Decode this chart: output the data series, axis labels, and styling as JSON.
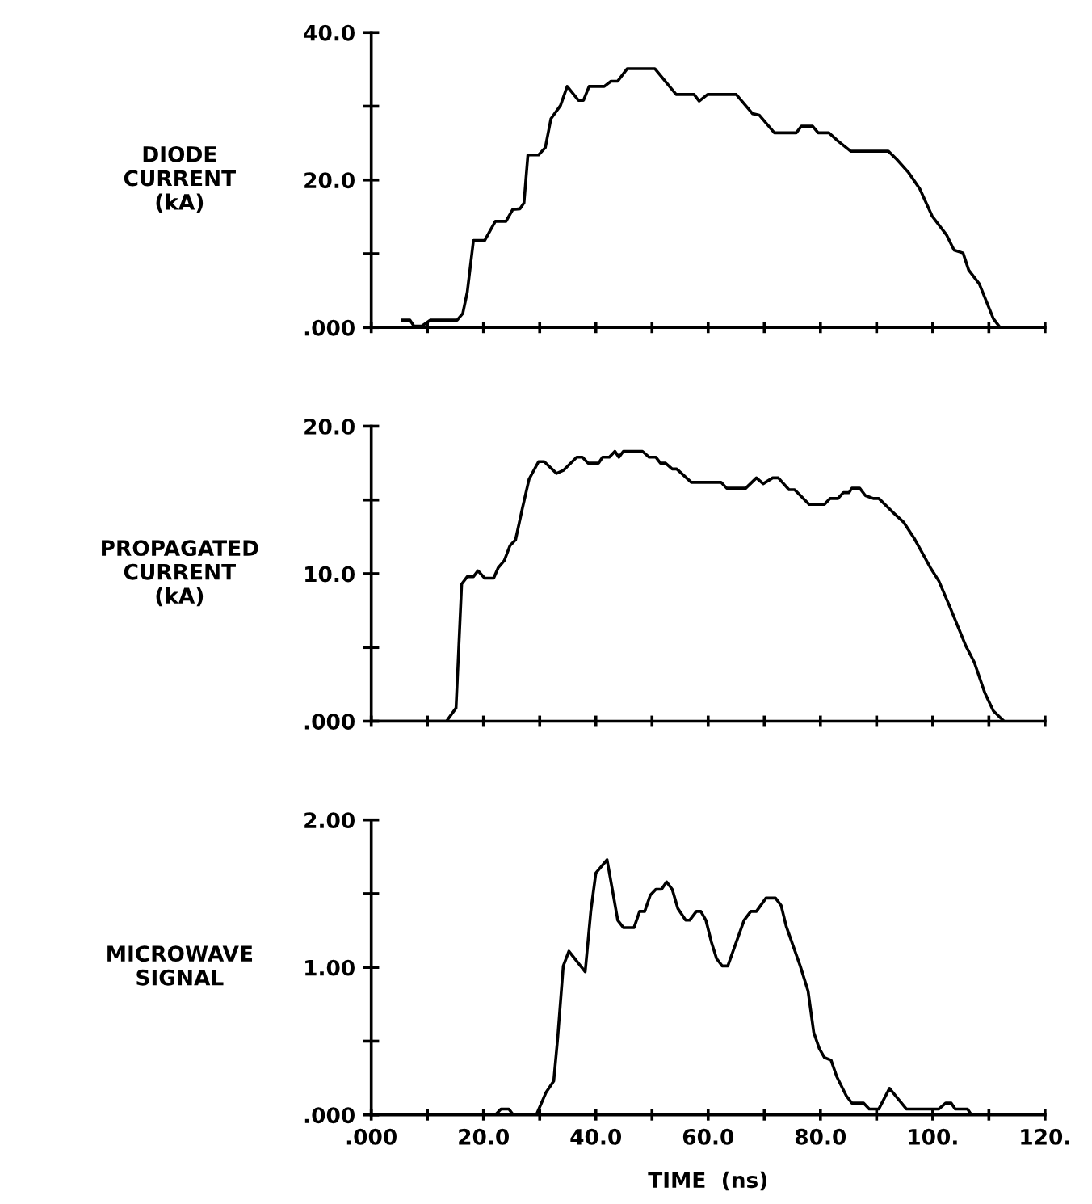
{
  "chart_data": [
    {
      "type": "line",
      "ylabel": "DIODE\nCURRENT\n(kA)",
      "xlim": [
        0,
        120
      ],
      "ylim": [
        0,
        40
      ],
      "tick_labels": "y",
      "grid": false,
      "xticks": [
        {
          "value": 0,
          "label": null
        },
        {
          "value": 10,
          "label": null
        },
        {
          "value": 20,
          "label": null
        },
        {
          "value": 30,
          "label": null
        },
        {
          "value": 40,
          "label": null
        },
        {
          "value": 50,
          "label": null
        },
        {
          "value": 60,
          "label": null
        },
        {
          "value": 70,
          "label": null
        },
        {
          "value": 80,
          "label": null
        },
        {
          "value": 90,
          "label": null
        },
        {
          "value": 100,
          "label": null
        },
        {
          "value": 110,
          "label": null
        },
        {
          "value": 120,
          "label": null
        }
      ],
      "yticks": [
        {
          "value": 0,
          "label": ".000"
        },
        {
          "value": 10,
          "label": null
        },
        {
          "value": 20,
          "label": "20.0"
        },
        {
          "value": 30,
          "label": null
        },
        {
          "value": 40,
          "label": "40.0"
        }
      ],
      "series": [
        {
          "color": "#000000",
          "x": [
            5.6,
            6.9,
            7.6,
            9.0,
            10.5,
            15.3,
            16.3,
            17.1,
            18.2,
            20.2,
            22.1,
            24.0,
            25.2,
            26.5,
            27.2,
            27.9,
            29.8,
            31.0,
            32.0,
            33.7,
            34.9,
            36.9,
            37.8,
            38.8,
            41.5,
            42.7,
            43.9,
            45.6,
            50.5,
            54.3,
            57.5,
            58.4,
            59.9,
            65.0,
            67.9,
            69.1,
            71.8,
            75.7,
            76.6,
            78.6,
            79.6,
            81.5,
            83.1,
            85.4,
            92.1,
            93.6,
            95.7,
            97.7,
            99.9,
            102.5,
            103.8,
            105.4,
            106.4,
            108.3,
            110.8,
            111.9
          ],
          "values": [
            1.0,
            1.0,
            0.2,
            0.2,
            1.0,
            1.0,
            1.9,
            4.8,
            11.8,
            11.8,
            14.4,
            14.4,
            16.0,
            16.1,
            16.9,
            23.4,
            23.4,
            24.4,
            28.3,
            30.1,
            32.7,
            30.8,
            30.8,
            32.7,
            32.7,
            33.4,
            33.4,
            35.1,
            35.1,
            31.6,
            31.6,
            30.7,
            31.6,
            31.6,
            29.0,
            28.8,
            26.4,
            26.4,
            27.3,
            27.3,
            26.4,
            26.4,
            25.3,
            23.9,
            23.9,
            22.8,
            21.0,
            18.8,
            15.1,
            12.5,
            10.5,
            10.1,
            7.8,
            5.9,
            1.2,
            0.1
          ]
        }
      ]
    },
    {
      "type": "line",
      "ylabel": "PROPAGATED\nCURRENT\n(kA)",
      "xlim": [
        0,
        120
      ],
      "ylim": [
        0,
        20
      ],
      "tick_labels": "y",
      "grid": false,
      "xticks": [
        {
          "value": 0,
          "label": null
        },
        {
          "value": 10,
          "label": null
        },
        {
          "value": 20,
          "label": null
        },
        {
          "value": 30,
          "label": null
        },
        {
          "value": 40,
          "label": null
        },
        {
          "value": 50,
          "label": null
        },
        {
          "value": 60,
          "label": null
        },
        {
          "value": 70,
          "label": null
        },
        {
          "value": 80,
          "label": null
        },
        {
          "value": 90,
          "label": null
        },
        {
          "value": 100,
          "label": null
        },
        {
          "value": 110,
          "label": null
        },
        {
          "value": 120,
          "label": null
        }
      ],
      "yticks": [
        {
          "value": 0,
          "label": ".000"
        },
        {
          "value": 5,
          "label": null
        },
        {
          "value": 10,
          "label": "10.0"
        },
        {
          "value": 15,
          "label": null
        },
        {
          "value": 20,
          "label": "20.0"
        }
      ],
      "series": [
        {
          "color": "#000000",
          "x": [
            0,
            13.4,
            15.1,
            16.1,
            17.1,
            18.2,
            19.0,
            20.2,
            21.8,
            22.6,
            23.7,
            24.7,
            25.7,
            26.9,
            28.1,
            29.8,
            30.8,
            33.0,
            34.2,
            36.6,
            37.6,
            38.6,
            40.5,
            41.2,
            42.4,
            43.4,
            44.1,
            44.9,
            48.3,
            49.5,
            50.7,
            51.5,
            52.4,
            53.6,
            54.4,
            57.0,
            62.3,
            63.3,
            66.7,
            68.6,
            69.8,
            71.5,
            72.5,
            74.4,
            75.4,
            78.0,
            80.7,
            81.7,
            83.1,
            84.1,
            85.1,
            85.6,
            87.0,
            88.0,
            89.4,
            90.4,
            92.8,
            94.8,
            96.7,
            99.6,
            101.1,
            103.0,
            105.9,
            107.4,
            109.3,
            110.8,
            112.7
          ],
          "values": [
            0,
            0,
            0.9,
            9.3,
            9.8,
            9.8,
            10.2,
            9.7,
            9.7,
            10.4,
            10.9,
            11.9,
            12.3,
            14.4,
            16.4,
            17.6,
            17.6,
            16.8,
            17.0,
            17.9,
            17.9,
            17.5,
            17.5,
            17.9,
            17.9,
            18.3,
            17.9,
            18.3,
            18.3,
            17.9,
            17.9,
            17.5,
            17.5,
            17.1,
            17.1,
            16.2,
            16.2,
            15.8,
            15.8,
            16.5,
            16.1,
            16.5,
            16.5,
            15.7,
            15.7,
            14.7,
            14.7,
            15.1,
            15.1,
            15.5,
            15.5,
            15.8,
            15.8,
            15.3,
            15.1,
            15.1,
            14.2,
            13.5,
            12.4,
            10.4,
            9.5,
            7.8,
            5.1,
            4.0,
            1.9,
            0.7,
            0
          ]
        }
      ]
    },
    {
      "type": "line",
      "ylabel": "MICROWAVE\nSIGNAL",
      "xlabel": "TIME  (ns)",
      "xlim": [
        0,
        120
      ],
      "ylim": [
        0,
        2
      ],
      "grid": false,
      "xticks": [
        {
          "value": 0,
          "label": ".000"
        },
        {
          "value": 10,
          "label": null
        },
        {
          "value": 20,
          "label": "20.0"
        },
        {
          "value": 30,
          "label": null
        },
        {
          "value": 40,
          "label": "40.0"
        },
        {
          "value": 50,
          "label": null
        },
        {
          "value": 60,
          "label": "60.0"
        },
        {
          "value": 70,
          "label": null
        },
        {
          "value": 80,
          "label": "80.0"
        },
        {
          "value": 90,
          "label": null
        },
        {
          "value": 100,
          "label": "100."
        },
        {
          "value": 110,
          "label": null
        },
        {
          "value": 120,
          "label": "120."
        }
      ],
      "yticks": [
        {
          "value": 0,
          "label": ".000"
        },
        {
          "value": 0.5,
          "label": null
        },
        {
          "value": 1,
          "label": "1.00"
        },
        {
          "value": 1.5,
          "label": null
        },
        {
          "value": 2,
          "label": "2.00"
        }
      ],
      "series": [
        {
          "color": "#000000",
          "x": [
            0,
            22.1,
            23.1,
            24.5,
            25.3,
            29.4,
            31.1,
            32.5,
            33.2,
            34.2,
            35.2,
            38.1,
            39.1,
            40.0,
            42.0,
            43.9,
            44.9,
            46.8,
            47.8,
            48.7,
            49.7,
            50.7,
            51.7,
            52.6,
            53.6,
            54.6,
            56.0,
            56.7,
            57.9,
            58.7,
            59.6,
            60.6,
            61.5,
            62.5,
            63.5,
            66.4,
            67.6,
            68.6,
            70.3,
            72.0,
            73.0,
            73.9,
            76.4,
            77.8,
            78.8,
            79.8,
            80.7,
            81.9,
            82.9,
            84.6,
            85.6,
            87.7,
            88.7,
            90.4,
            92.3,
            95.3,
            101.1,
            102.3,
            103.3,
            104.0,
            106.2,
            106.9
          ],
          "values": [
            0,
            0,
            0.04,
            0.04,
            0,
            0,
            0.15,
            0.23,
            0.52,
            1.01,
            1.11,
            0.97,
            1.38,
            1.64,
            1.73,
            1.32,
            1.27,
            1.27,
            1.38,
            1.38,
            1.49,
            1.53,
            1.53,
            1.58,
            1.53,
            1.4,
            1.32,
            1.32,
            1.38,
            1.38,
            1.32,
            1.17,
            1.06,
            1.01,
            1.01,
            1.32,
            1.38,
            1.38,
            1.47,
            1.47,
            1.42,
            1.28,
            1.01,
            0.84,
            0.56,
            0.45,
            0.39,
            0.37,
            0.26,
            0.13,
            0.08,
            0.08,
            0.04,
            0.04,
            0.18,
            0.04,
            0.04,
            0.08,
            0.08,
            0.04,
            0.04,
            0
          ]
        }
      ]
    }
  ]
}
